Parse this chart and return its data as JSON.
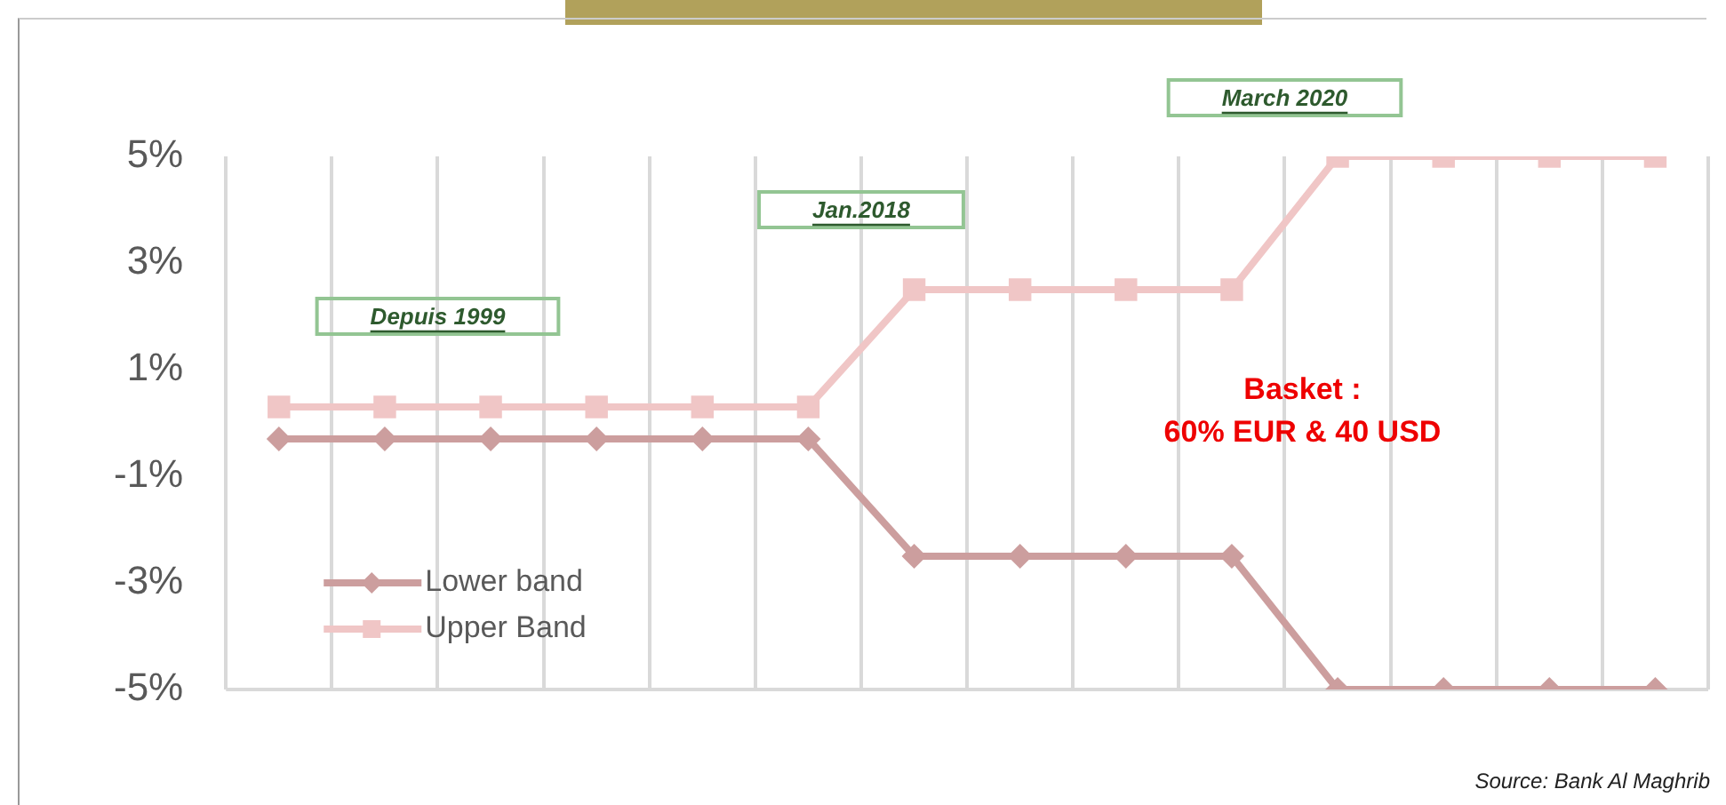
{
  "chart_data": {
    "type": "line",
    "categories": [
      null,
      null,
      null,
      null,
      null,
      null,
      null,
      null,
      null,
      null,
      null,
      null,
      null,
      null
    ],
    "series": [
      {
        "name": "Lower band",
        "color": "#cc9e9e",
        "marker": "diamond",
        "values": [
          -0.3,
          -0.3,
          -0.3,
          -0.3,
          -0.3,
          -0.3,
          -2.5,
          -2.5,
          -2.5,
          -2.5,
          -5,
          -5,
          -5,
          -5
        ]
      },
      {
        "name": "Upper Band",
        "color": "#f0c6c6",
        "marker": "square",
        "values": [
          0.3,
          0.3,
          0.3,
          0.3,
          0.3,
          0.3,
          2.5,
          2.5,
          2.5,
          2.5,
          5,
          5,
          5,
          5
        ]
      }
    ],
    "ylim": [
      -5,
      5
    ],
    "yticks": [
      {
        "value": -5,
        "label": "-5%"
      },
      {
        "value": -3,
        "label": "-3%"
      },
      {
        "value": -1,
        "label": "-1%"
      },
      {
        "value": 1,
        "label": "1%"
      },
      {
        "value": 3,
        "label": "3%"
      },
      {
        "value": 5,
        "label": "5%"
      }
    ],
    "grid": "x",
    "legend": "bottom left",
    "line_style": "solid",
    "annotations": [
      "Depuis 1999",
      "Jan.2018",
      "March 2020",
      "Basket :\n60% EUR & 40 USD",
      "Source: Bank Al Maghrib"
    ]
  }
}
